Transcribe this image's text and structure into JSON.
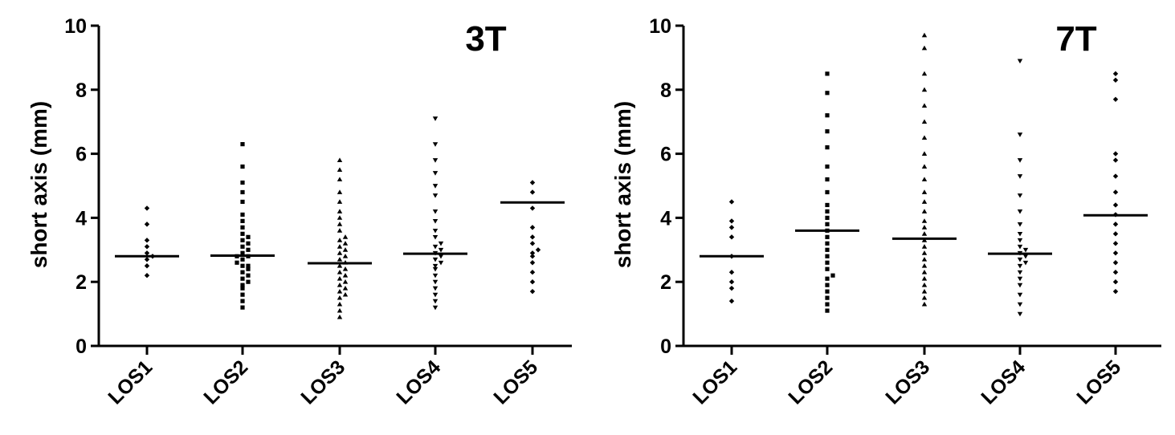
{
  "chart_data": [
    {
      "type": "scatter",
      "subtype": "dot-plot with median line",
      "title": "3T",
      "ylabel": "short axis (mm)",
      "ylim": [
        0,
        10
      ],
      "yticks": [
        "0",
        "2",
        "4",
        "6",
        "8",
        "10"
      ],
      "categories": [
        "LOS1",
        "LOS2",
        "LOS3",
        "LOS4",
        "LOS5"
      ],
      "markers": [
        "diamond",
        "square",
        "triangle-up",
        "triangle-down",
        "diamond"
      ],
      "medians": [
        2.8,
        2.82,
        2.58,
        2.88,
        4.48
      ],
      "points": [
        [
          2.2,
          2.5,
          2.7,
          2.8,
          2.9,
          3.1,
          3.3,
          3.8,
          4.3
        ],
        [
          1.2,
          1.4,
          1.6,
          1.8,
          1.9,
          2.0,
          2.1,
          2.2,
          2.3,
          2.4,
          2.5,
          2.5,
          2.6,
          2.7,
          2.8,
          2.8,
          2.9,
          3.0,
          3.1,
          3.2,
          3.3,
          3.4,
          3.5,
          3.7,
          3.9,
          4.1,
          4.5,
          4.8,
          5.1,
          5.6,
          6.3
        ],
        [
          0.9,
          1.1,
          1.3,
          1.5,
          1.6,
          1.7,
          1.8,
          1.9,
          2.0,
          2.1,
          2.2,
          2.3,
          2.4,
          2.5,
          2.6,
          2.7,
          2.8,
          2.9,
          3.0,
          3.1,
          3.2,
          3.3,
          3.4,
          3.6,
          3.8,
          4.0,
          4.2,
          4.5,
          4.8,
          5.2,
          5.5,
          5.8
        ],
        [
          1.2,
          1.4,
          1.6,
          1.8,
          2.0,
          2.2,
          2.4,
          2.5,
          2.6,
          2.7,
          2.8,
          2.9,
          3.0,
          3.1,
          3.2,
          3.4,
          3.6,
          3.9,
          4.2,
          4.7,
          5.0,
          5.4,
          5.8,
          6.3,
          7.1
        ],
        [
          1.7,
          2.0,
          2.3,
          2.6,
          2.8,
          2.9,
          3.0,
          3.2,
          3.4,
          3.7,
          4.3,
          4.8,
          5.1
        ]
      ]
    },
    {
      "type": "scatter",
      "subtype": "dot-plot with median line",
      "title": "7T",
      "ylabel": "short axis (mm)",
      "ylim": [
        0,
        10
      ],
      "yticks": [
        "0",
        "2",
        "4",
        "6",
        "8",
        "10"
      ],
      "categories": [
        "LOS1",
        "LOS2",
        "LOS3",
        "LOS4",
        "LOS5"
      ],
      "markers": [
        "diamond",
        "square",
        "triangle-up",
        "triangle-down",
        "diamond"
      ],
      "medians": [
        2.8,
        3.6,
        3.35,
        2.88,
        4.08
      ],
      "points": [
        [
          1.4,
          1.8,
          2.0,
          2.3,
          2.8,
          3.4,
          3.7,
          3.9,
          4.5
        ],
        [
          1.1,
          1.3,
          1.5,
          1.7,
          1.9,
          2.1,
          2.2,
          2.4,
          2.6,
          2.8,
          3.0,
          3.2,
          3.4,
          3.6,
          3.8,
          4.0,
          4.2,
          4.4,
          4.8,
          5.2,
          5.6,
          6.2,
          6.7,
          7.2,
          7.9,
          8.5
        ],
        [
          1.3,
          1.5,
          1.7,
          1.9,
          2.1,
          2.3,
          2.5,
          2.7,
          2.9,
          3.1,
          3.3,
          3.5,
          3.7,
          3.9,
          4.2,
          4.5,
          4.8,
          5.2,
          5.6,
          6.0,
          6.5,
          7.0,
          7.5,
          8.0,
          8.5,
          9.3,
          9.7
        ],
        [
          1.0,
          1.3,
          1.6,
          1.9,
          2.1,
          2.3,
          2.5,
          2.6,
          2.7,
          2.8,
          2.9,
          3.0,
          3.1,
          3.3,
          3.5,
          3.8,
          4.2,
          4.7,
          5.3,
          5.8,
          6.6,
          8.9
        ],
        [
          1.7,
          2.0,
          2.3,
          2.6,
          2.9,
          3.2,
          3.5,
          3.8,
          4.1,
          4.4,
          4.8,
          5.3,
          5.8,
          6.0,
          7.7,
          8.3,
          8.5
        ]
      ]
    }
  ]
}
